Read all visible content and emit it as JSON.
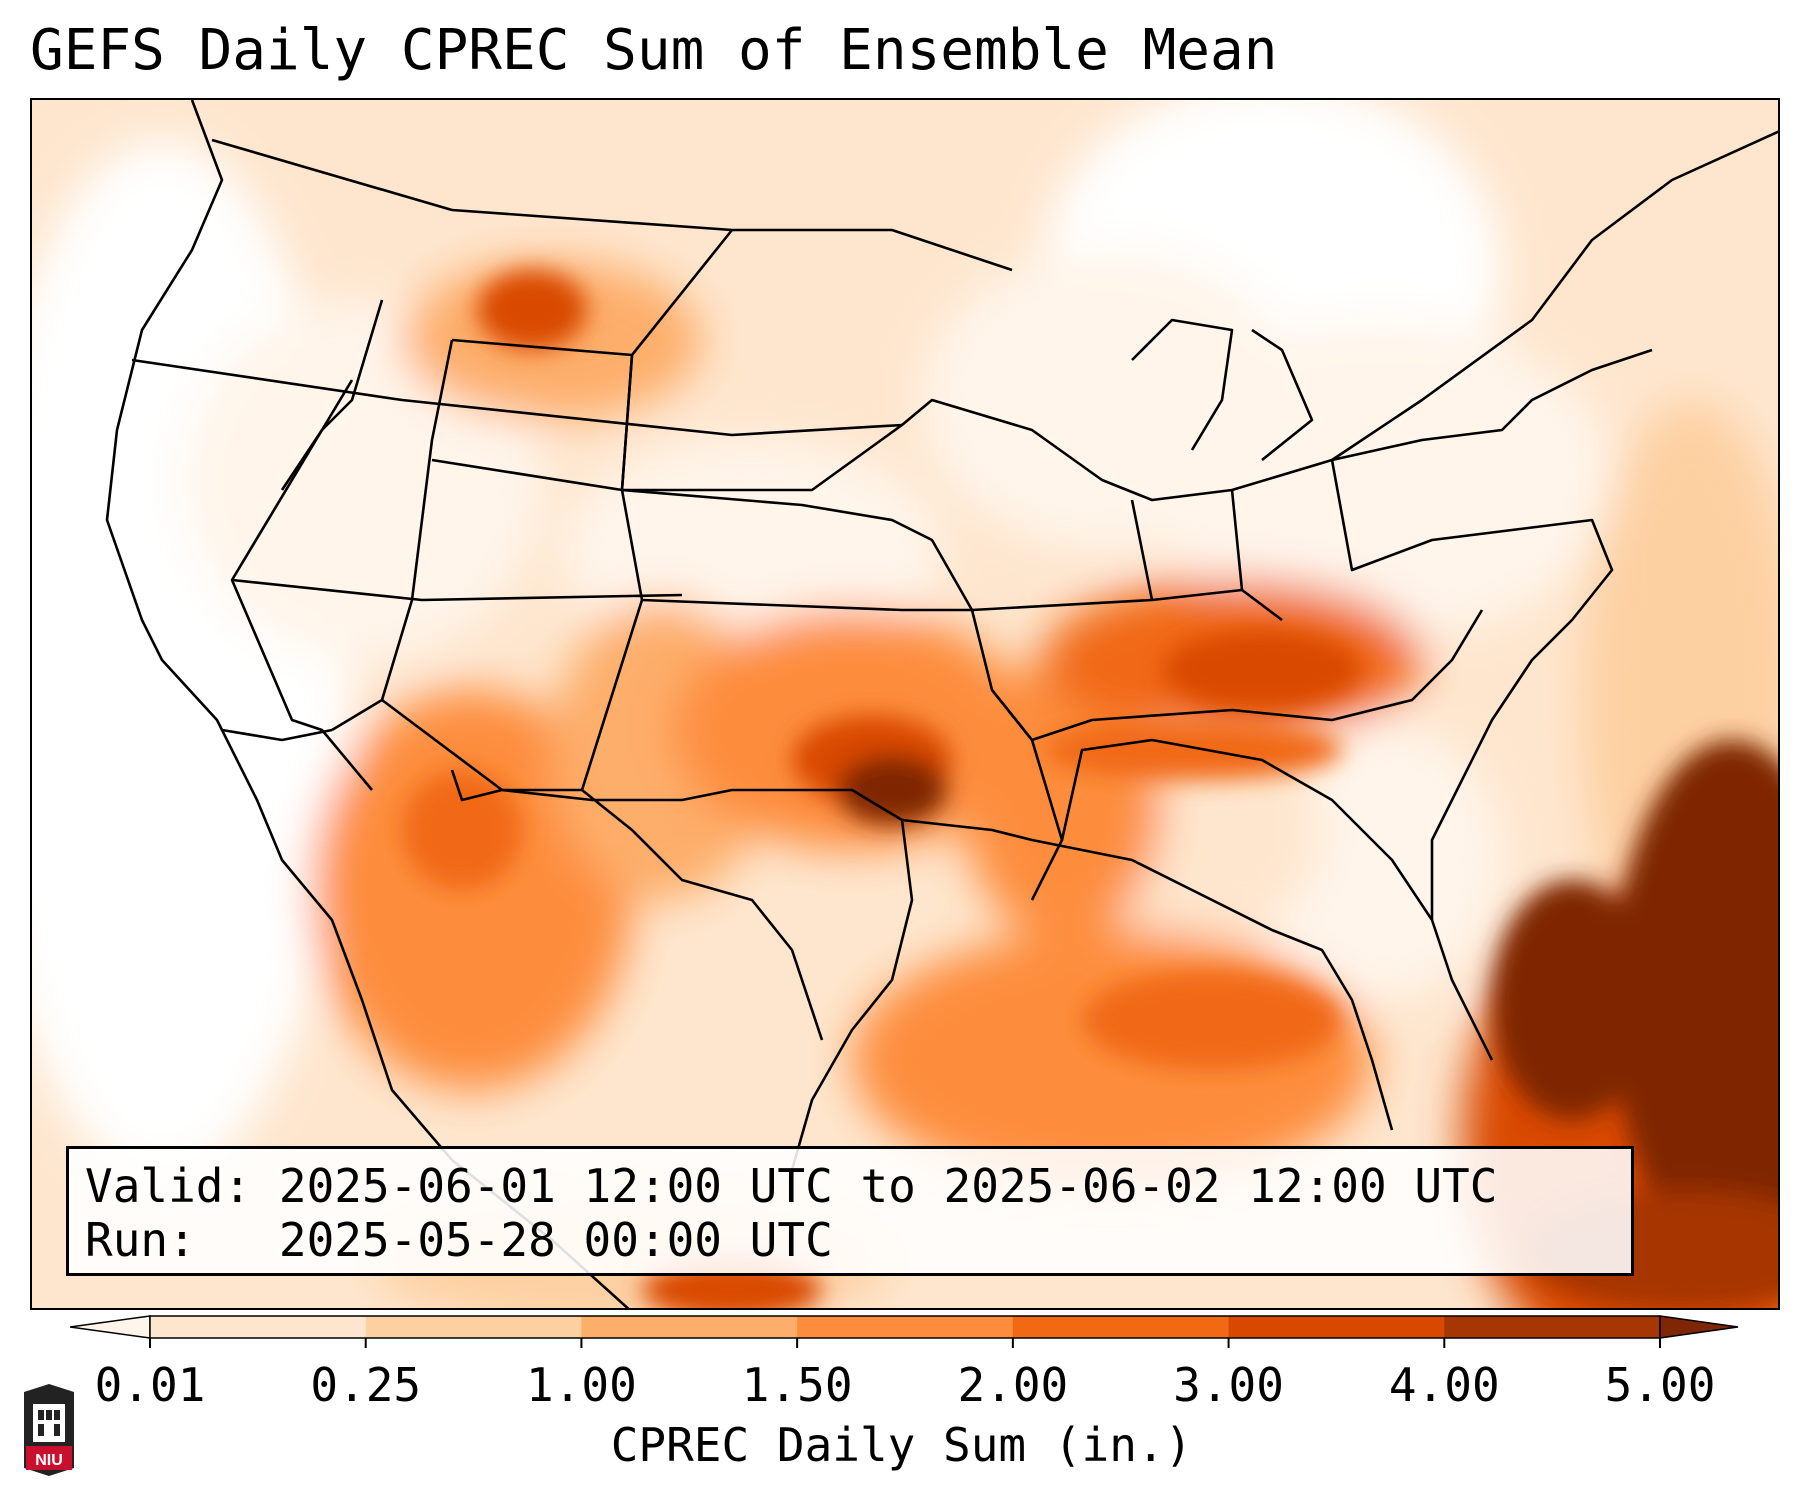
{
  "title": "GEFS Daily CPREC Sum of Ensemble Mean",
  "info": {
    "valid_label": "Valid:",
    "valid_value": "2025-06-01 12:00 UTC to 2025-06-02 12:00 UTC",
    "run_label": "Run:",
    "run_value": "2025-05-28 00:00 UTC"
  },
  "colorbar": {
    "title": "CPREC Daily Sum (in.)",
    "ticks": [
      "0.01",
      "0.25",
      "1.00",
      "1.50",
      "2.00",
      "3.00",
      "4.00",
      "5.00"
    ],
    "colors": [
      "#fff5eb",
      "#fee6ce",
      "#fdd0a2",
      "#fdae6b",
      "#fd8d3c",
      "#f16913",
      "#d94801",
      "#a63603",
      "#7f2704"
    ]
  },
  "logo": {
    "text": "NIU",
    "color": "#c8102e"
  },
  "colors": {
    "land_outline": "#000000",
    "background": "#ffffff"
  }
}
